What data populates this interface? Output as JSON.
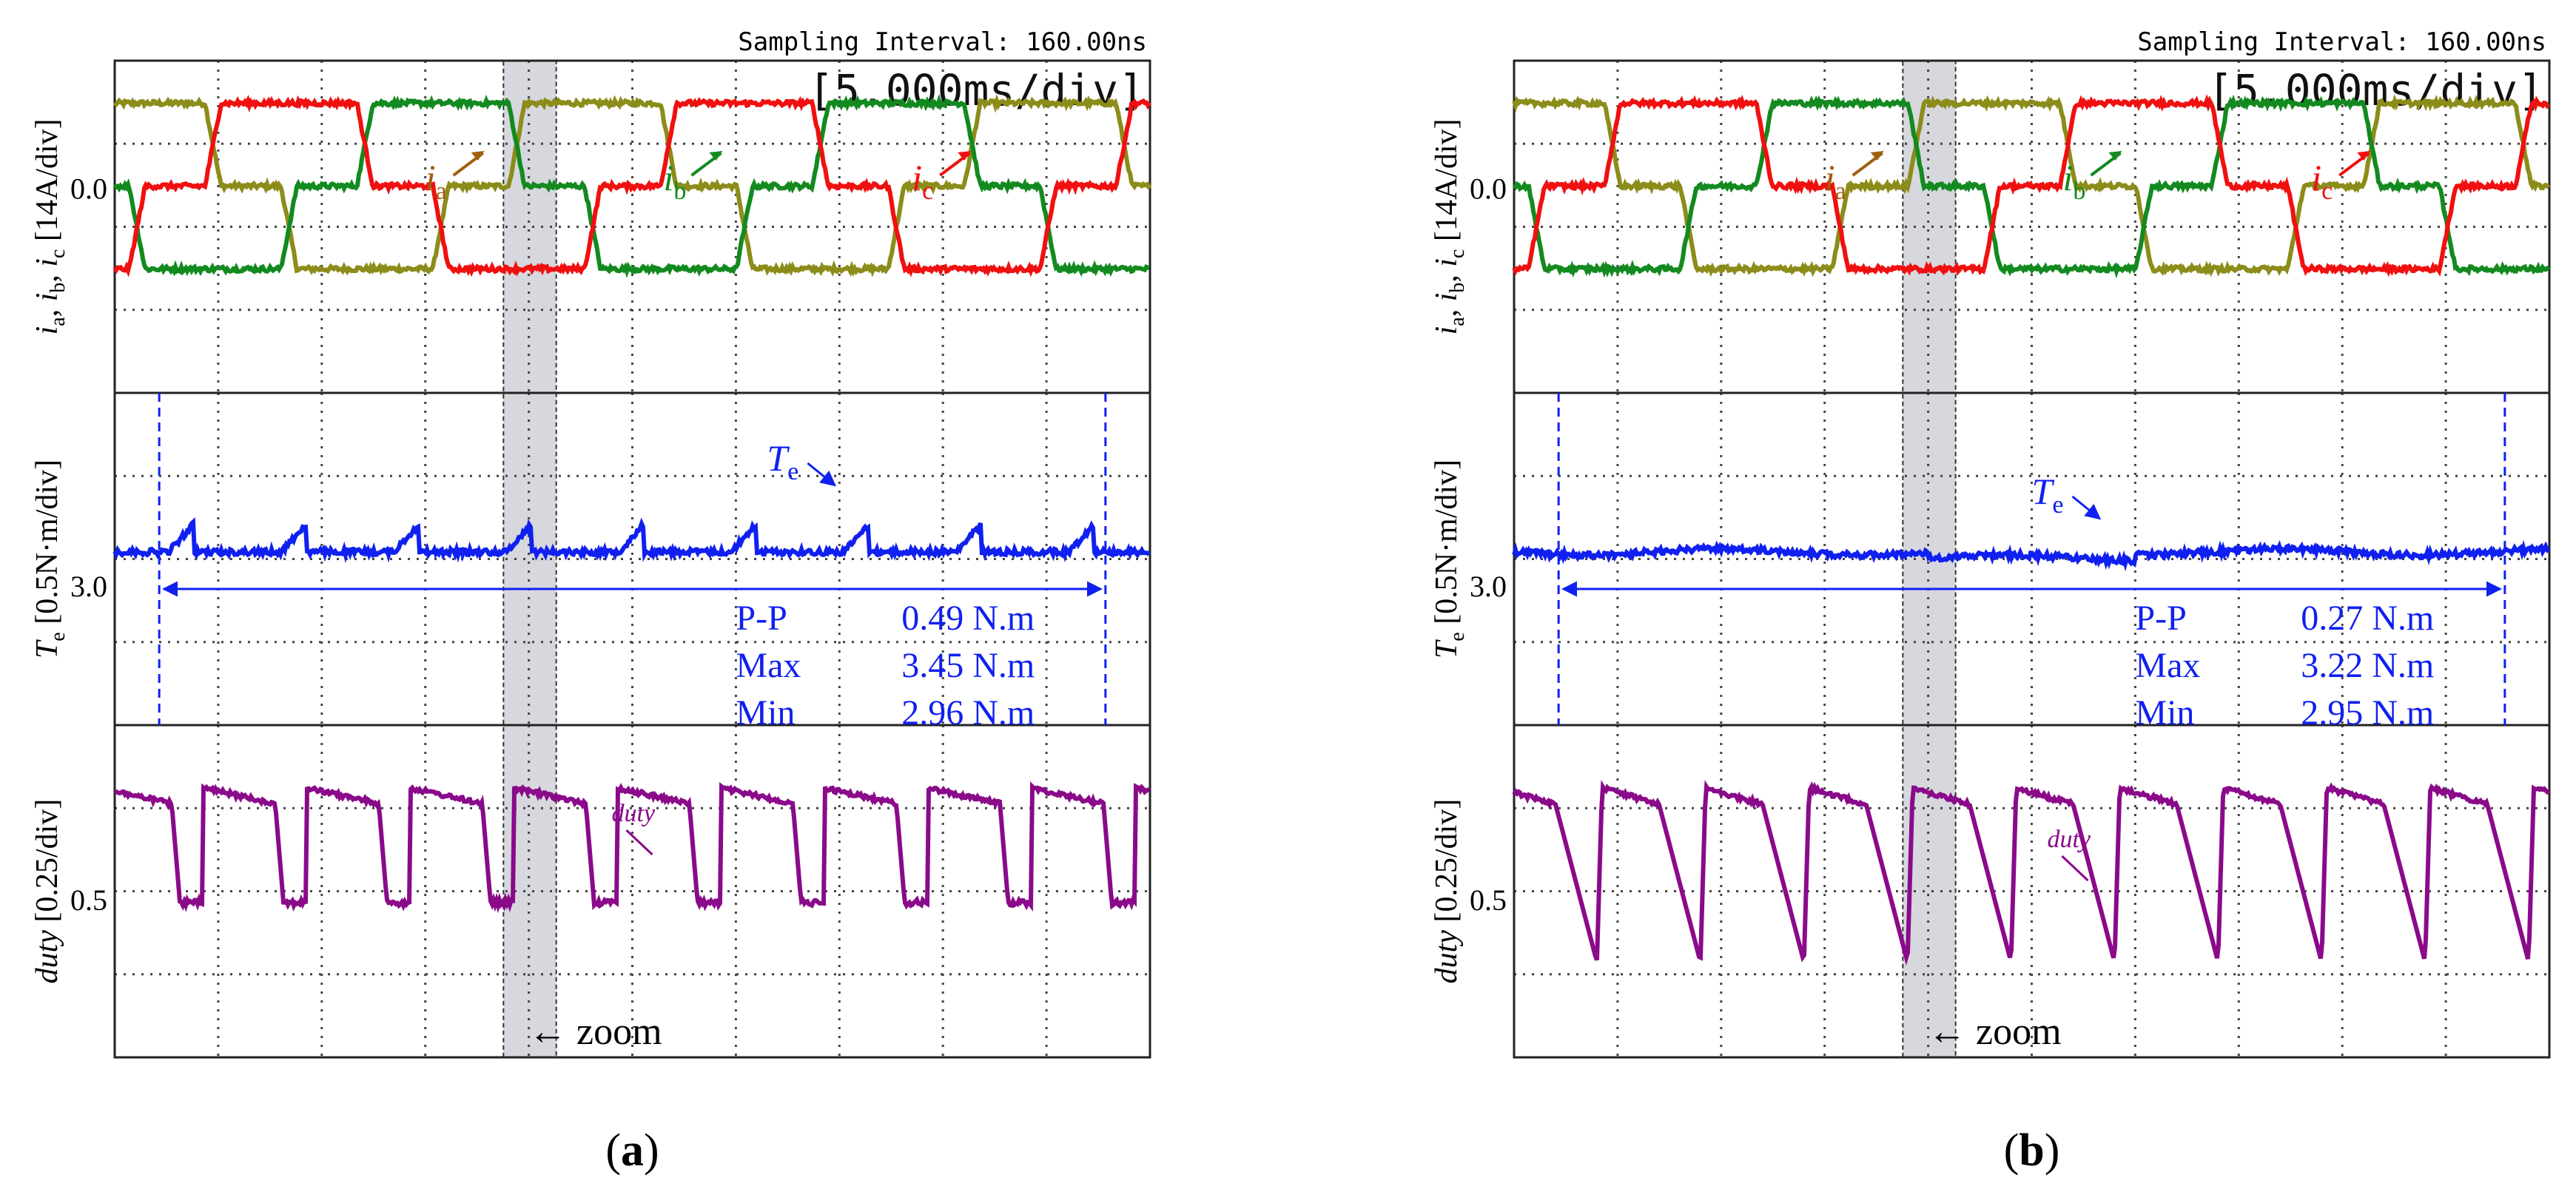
{
  "panels": [
    {
      "id": "a",
      "caption": "(a)",
      "caption_letter": "a",
      "sampling_label": "Sampling Interval:",
      "sampling_value": "160.00ns",
      "timebase": "[5.000ms/div]",
      "zoom_label": "zoom",
      "zoom_arrow": "←",
      "currents": {
        "ylabel": "i_a, i_b, i_c [14A/div]",
        "ylabel_scale": "[14A/div]",
        "zero_label": "0.0",
        "phase_labels": [
          "a",
          "b",
          "c"
        ]
      },
      "torque": {
        "ylabel": "T_e [0.5N·m/div]",
        "ylabel_scale": "[0.5N·m/div]",
        "ref_label": "3.0",
        "trace_label": "e",
        "stats": [
          {
            "name": "P-P",
            "value": "0.49 N.m"
          },
          {
            "name": "Max",
            "value": "3.45 N.m"
          },
          {
            "name": "Min",
            "value": "2.96 N.m"
          }
        ]
      },
      "duty": {
        "ylabel": "duty",
        "ylabel_scale": "[0.25/div]",
        "ref_label": "0.5",
        "trace_label": "duty"
      }
    },
    {
      "id": "b",
      "caption": "(b)",
      "caption_letter": "b",
      "sampling_label": "Sampling Interval:",
      "sampling_value": "160.00ns",
      "timebase": "[5.000ms/div]",
      "zoom_label": "zoom",
      "zoom_arrow": "←",
      "currents": {
        "ylabel": "i_a, i_b, i_c [14A/div]",
        "ylabel_scale": "[14A/div]",
        "zero_label": "0.0",
        "phase_labels": [
          "a",
          "b",
          "c"
        ]
      },
      "torque": {
        "ylabel": "T_e [0.5N·m/div]",
        "ylabel_scale": "[0.5N·m/div]",
        "ref_label": "3.0",
        "trace_label": "e",
        "stats": [
          {
            "name": "P-P",
            "value": "0.27 N.m"
          },
          {
            "name": "Max",
            "value": "3.22 N.m"
          },
          {
            "name": "Min",
            "value": "2.95 N.m"
          }
        ]
      },
      "duty": {
        "ylabel": "duty",
        "ylabel_scale": "[0.25/div]",
        "ref_label": "0.5",
        "trace_label": "duty"
      }
    }
  ],
  "colors": {
    "ia": "#8c8c1a",
    "ib": "#138a1f",
    "ic": "#f01010",
    "torque": "#1020f0",
    "duty": "#8a0a8a",
    "ia_label": "#a06010",
    "grid": "#444444",
    "zoom_band": "#d6d8de"
  }
}
